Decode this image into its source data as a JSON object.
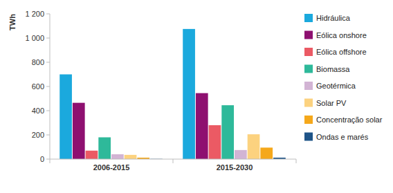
{
  "chart_data": {
    "type": "bar",
    "y_label": "TWh",
    "categories": [
      "2006-2015",
      "2015-2030"
    ],
    "series": [
      {
        "name": "Hidráulica",
        "color": "#1ba9dd",
        "values": [
          700,
          1075
        ]
      },
      {
        "name": "Eólica onshore",
        "color": "#8e1070",
        "values": [
          465,
          545
        ]
      },
      {
        "name": "Eólica offshore",
        "color": "#eb5a64",
        "values": [
          70,
          280
        ]
      },
      {
        "name": "Biomassa",
        "color": "#2eb99a",
        "values": [
          180,
          445
        ]
      },
      {
        "name": "Geotérmica",
        "color": "#d2b4d4",
        "values": [
          40,
          75
        ]
      },
      {
        "name": "Solar PV",
        "color": "#fcd27f",
        "values": [
          35,
          205
        ]
      },
      {
        "name": "Concentração solar",
        "color": "#f5a81b",
        "values": [
          12,
          95
        ]
      },
      {
        "name": "Ondas e marés",
        "color": "#1f5488",
        "values": [
          2,
          12
        ]
      }
    ],
    "ylim": [
      0,
      1200
    ],
    "yticks": [
      0,
      200,
      400,
      600,
      800,
      {
        "value": 1000,
        "label": "1 000"
      },
      {
        "value": 1200,
        "label": "1 200"
      }
    ],
    "grid": false,
    "legend": "right"
  }
}
